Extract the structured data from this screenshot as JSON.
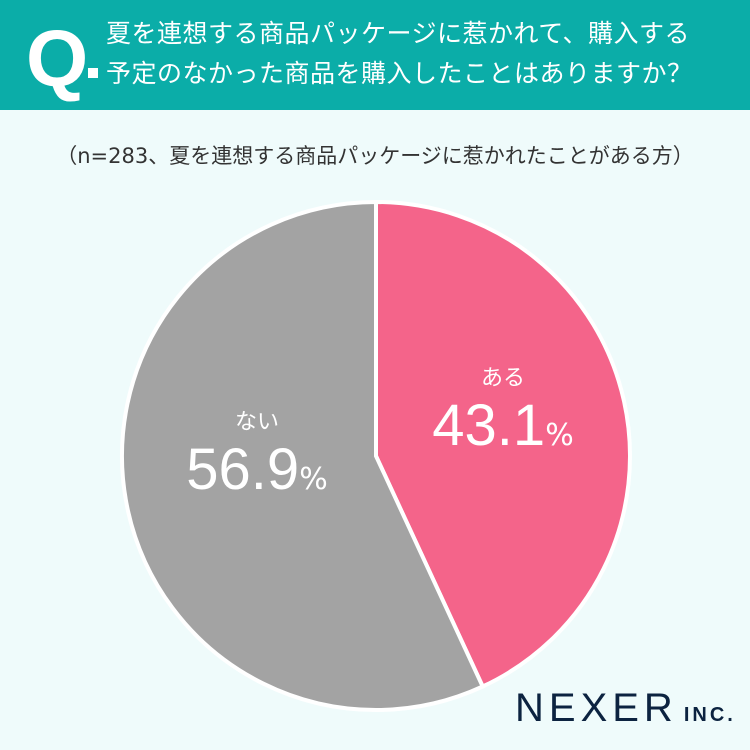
{
  "header": {
    "q": "Q",
    "title_line1": "夏を連想する商品パッケージに惹かれて、購入する",
    "title_line2": "予定のなかった商品を購入したことはありますか？"
  },
  "note": "（n=283、夏を連想する商品パッケージに惹かれたことがある方）",
  "chart_data": {
    "type": "pie",
    "title": "夏を連想する商品パッケージに惹かれて、購入する予定のなかった商品を購入したことはありますか？",
    "categories": [
      "ある",
      "ない"
    ],
    "values": [
      43.1,
      56.9
    ],
    "value_labels": [
      "43.1",
      "56.9"
    ],
    "unit": "%",
    "colors": [
      "#f4648a",
      "#a3a3a3"
    ],
    "start": "12 o'clock, clockwise"
  },
  "logo": {
    "name": "NEXER",
    "suffix": "INC."
  }
}
